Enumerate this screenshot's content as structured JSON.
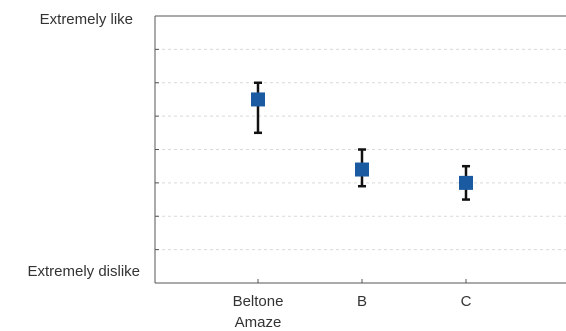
{
  "chart_data": {
    "type": "scatter",
    "title": "",
    "xlabel": "",
    "ylabel": "",
    "y_top_label": "Extremely like",
    "y_bottom_label": "Extremely dislike",
    "categories": [
      {
        "lines": [
          "Beltone",
          "Amaze"
        ]
      },
      {
        "lines": [
          "B"
        ]
      },
      {
        "lines": [
          "C"
        ]
      }
    ],
    "series": [
      {
        "values": [
          5.5,
          3.4,
          3.0
        ],
        "error_low": [
          4.5,
          2.9,
          2.5
        ],
        "error_high": [
          6.0,
          4.0,
          3.5
        ],
        "marker": "square"
      }
    ],
    "ylim": [
      0,
      8
    ],
    "y_major_tick_count": 8,
    "grid": true,
    "grid_style": "dashed",
    "legend": "none",
    "colors": {
      "marker": "#1a5aa0",
      "error_bar": "#111111",
      "axis": "#555555",
      "grid": "#d9d9d9",
      "text": "#333333"
    }
  }
}
